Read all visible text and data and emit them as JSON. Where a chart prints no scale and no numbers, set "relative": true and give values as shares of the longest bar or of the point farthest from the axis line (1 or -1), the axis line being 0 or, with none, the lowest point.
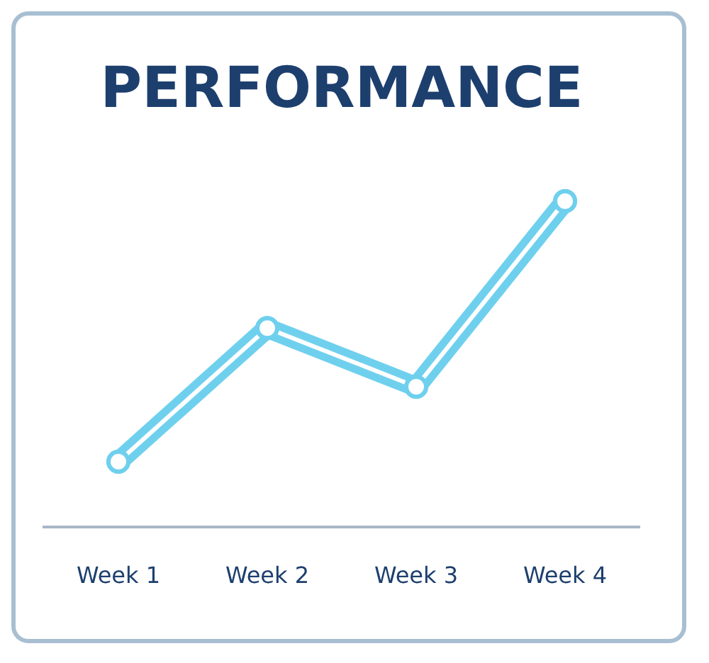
{
  "chart_data": {
    "type": "line",
    "title": "PERFORMANCE",
    "categories": [
      "Week 1",
      "Week 2",
      "Week 3",
      "Week 4"
    ],
    "relative": true,
    "series": [
      {
        "color": "#6fd0ee",
        "values": [
          0.2,
          0.61,
          0.43,
          1
        ]
      }
    ],
    "marker": "circle",
    "grid": false,
    "legend": false
  }
}
